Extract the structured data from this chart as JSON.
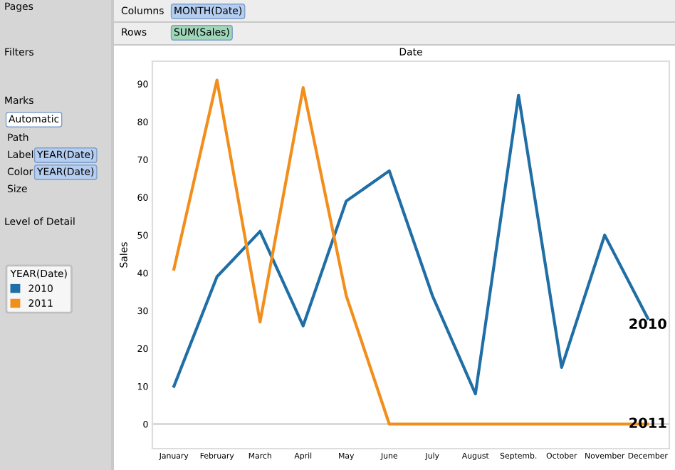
{
  "chart_data": {
    "type": "line",
    "xlabel": "Date",
    "ylabel": "Sales",
    "legend_title": "YEAR(Date)",
    "categories": [
      "January",
      "February",
      "March",
      "April",
      "May",
      "June",
      "July",
      "August",
      "Septemb.",
      "October",
      "November",
      "December"
    ],
    "series": [
      {
        "name": "2010",
        "color": "#1f6ea5",
        "values": [
          10,
          39,
          51,
          26,
          59,
          67,
          34,
          8,
          87,
          15,
          50,
          28
        ]
      },
      {
        "name": "2011",
        "color": "#f28e1c",
        "values": [
          41,
          91,
          27,
          89,
          34,
          0,
          0,
          0,
          0,
          0,
          0,
          0
        ]
      }
    ],
    "ylim": [
      -6.5,
      96
    ],
    "yticks": [
      0,
      10,
      20,
      30,
      40,
      50,
      60,
      70,
      80,
      90
    ],
    "ref_lines": [
      {
        "axis": "y",
        "value": 0,
        "color": "#d9d9d9"
      }
    ],
    "grid": false,
    "legend": "left",
    "marker": "none",
    "line_style": "solid",
    "annotations": [
      "Pages",
      "Columns",
      "MONTH(Date)",
      "Rows",
      "SUM(Sales)",
      "Filters",
      "Marks",
      "Automatic",
      "Path",
      "Label",
      "YEAR(Date)",
      "Color",
      "YEAR(Date)",
      "Size",
      "Level of Detail"
    ]
  }
}
